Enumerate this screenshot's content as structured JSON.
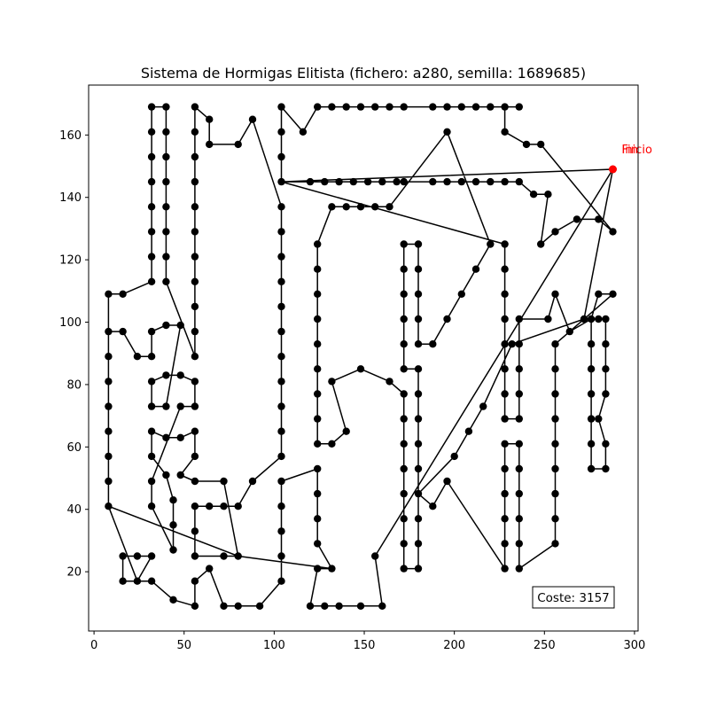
{
  "chart_data": {
    "type": "line",
    "title": "Sistema de Hormigas Elitista (fichero: a280, semilla: 1689685)",
    "xlabel": "",
    "ylabel": "",
    "xlim": [
      -3,
      302
    ],
    "ylim": [
      1,
      176
    ],
    "xticks": [
      0,
      50,
      100,
      150,
      200,
      250,
      300
    ],
    "yticks": [
      20,
      40,
      60,
      80,
      100,
      120,
      140,
      160
    ],
    "grid": false,
    "line_color": "#000000",
    "marker_color": "#000000",
    "highlight_color": "#ff0000",
    "start_label": "Inicio",
    "end_label": "Fin",
    "cost_label": "Coste: 3157",
    "tour": [
      [
        288,
        149
      ],
      [
        104,
        145
      ],
      [
        120,
        145
      ],
      [
        128,
        145
      ],
      [
        136,
        145
      ],
      [
        144,
        145
      ],
      [
        152,
        145
      ],
      [
        160,
        145
      ],
      [
        168,
        145
      ],
      [
        172,
        145
      ],
      [
        188,
        145
      ],
      [
        196,
        145
      ],
      [
        204,
        145
      ],
      [
        212,
        145
      ],
      [
        220,
        145
      ],
      [
        228,
        145
      ],
      [
        236,
        145
      ],
      [
        244,
        141
      ],
      [
        252,
        141
      ],
      [
        248,
        125
      ],
      [
        256,
        129
      ],
      [
        268,
        133
      ],
      [
        280,
        133
      ],
      [
        288,
        129
      ],
      [
        248,
        157
      ],
      [
        240,
        157
      ],
      [
        228,
        161
      ],
      [
        228,
        169
      ],
      [
        236,
        169
      ],
      [
        220,
        169
      ],
      [
        212,
        169
      ],
      [
        204,
        169
      ],
      [
        196,
        169
      ],
      [
        188,
        169
      ],
      [
        172,
        169
      ],
      [
        164,
        169
      ],
      [
        156,
        169
      ],
      [
        148,
        169
      ],
      [
        140,
        169
      ],
      [
        132,
        169
      ],
      [
        124,
        169
      ],
      [
        116,
        161
      ],
      [
        104,
        169
      ],
      [
        104,
        161
      ],
      [
        104,
        153
      ],
      [
        104,
        145
      ],
      [
        228,
        125
      ],
      [
        228,
        117
      ],
      [
        228,
        109
      ],
      [
        228,
        101
      ],
      [
        228,
        93
      ],
      [
        228,
        85
      ],
      [
        228,
        77
      ],
      [
        228,
        69
      ],
      [
        236,
        69
      ],
      [
        236,
        77
      ],
      [
        236,
        85
      ],
      [
        236,
        93
      ],
      [
        236,
        101
      ],
      [
        252,
        101
      ],
      [
        256,
        109
      ],
      [
        264,
        97
      ],
      [
        276,
        101
      ],
      [
        280,
        101
      ],
      [
        284,
        101
      ],
      [
        284,
        93
      ],
      [
        284,
        85
      ],
      [
        284,
        77
      ],
      [
        280,
        69
      ],
      [
        284,
        61
      ],
      [
        284,
        53
      ],
      [
        276,
        53
      ],
      [
        276,
        61
      ],
      [
        276,
        69
      ],
      [
        276,
        77
      ],
      [
        276,
        85
      ],
      [
        276,
        93
      ],
      [
        276,
        101
      ],
      [
        280,
        109
      ],
      [
        288,
        109
      ],
      [
        256,
        93
      ],
      [
        256,
        85
      ],
      [
        256,
        77
      ],
      [
        256,
        69
      ],
      [
        256,
        61
      ],
      [
        256,
        53
      ],
      [
        256,
        45
      ],
      [
        256,
        37
      ],
      [
        256,
        29
      ],
      [
        236,
        21
      ],
      [
        236,
        29
      ],
      [
        236,
        37
      ],
      [
        236,
        45
      ],
      [
        236,
        53
      ],
      [
        236,
        61
      ],
      [
        228,
        61
      ],
      [
        228,
        53
      ],
      [
        228,
        45
      ],
      [
        228,
        37
      ],
      [
        228,
        29
      ],
      [
        228,
        21
      ],
      [
        196,
        49
      ],
      [
        188,
        41
      ],
      [
        180,
        45
      ],
      [
        180,
        37
      ],
      [
        180,
        29
      ],
      [
        180,
        21
      ],
      [
        172,
        21
      ],
      [
        172,
        29
      ],
      [
        172,
        37
      ],
      [
        172,
        45
      ],
      [
        172,
        53
      ],
      [
        172,
        61
      ],
      [
        172,
        69
      ],
      [
        172,
        77
      ],
      [
        164,
        81
      ],
      [
        148,
        85
      ],
      [
        132,
        81
      ],
      [
        140,
        65
      ],
      [
        132,
        61
      ],
      [
        124,
        61
      ],
      [
        124,
        69
      ],
      [
        124,
        77
      ],
      [
        124,
        85
      ],
      [
        124,
        93
      ],
      [
        124,
        101
      ],
      [
        124,
        109
      ],
      [
        124,
        117
      ],
      [
        124,
        125
      ],
      [
        132,
        137
      ],
      [
        140,
        137
      ],
      [
        148,
        137
      ],
      [
        156,
        137
      ],
      [
        164,
        137
      ],
      [
        196,
        161
      ],
      [
        220,
        125
      ],
      [
        212,
        117
      ],
      [
        204,
        109
      ],
      [
        196,
        101
      ],
      [
        188,
        93
      ],
      [
        180,
        93
      ],
      [
        180,
        101
      ],
      [
        180,
        109
      ],
      [
        180,
        117
      ],
      [
        180,
        125
      ],
      [
        172,
        125
      ],
      [
        172,
        117
      ],
      [
        172,
        109
      ],
      [
        172,
        101
      ],
      [
        172,
        93
      ],
      [
        172,
        85
      ],
      [
        180,
        85
      ],
      [
        180,
        77
      ],
      [
        180,
        69
      ],
      [
        180,
        61
      ],
      [
        180,
        53
      ],
      [
        180,
        45
      ],
      [
        200,
        57
      ],
      [
        208,
        65
      ],
      [
        216,
        73
      ],
      [
        232,
        93
      ],
      [
        272,
        101
      ],
      [
        288,
        149
      ],
      [
        156,
        25
      ],
      [
        160,
        9
      ],
      [
        148,
        9
      ],
      [
        136,
        9
      ],
      [
        128,
        9
      ],
      [
        120,
        9
      ],
      [
        124,
        21
      ],
      [
        132,
        21
      ],
      [
        124,
        29
      ],
      [
        124,
        37
      ],
      [
        124,
        45
      ],
      [
        124,
        53
      ],
      [
        104,
        49
      ],
      [
        104,
        41
      ],
      [
        104,
        33
      ],
      [
        104,
        25
      ],
      [
        104,
        17
      ],
      [
        92,
        9
      ],
      [
        80,
        9
      ],
      [
        72,
        9
      ],
      [
        64,
        21
      ],
      [
        56,
        17
      ],
      [
        56,
        9
      ],
      [
        44,
        11
      ],
      [
        32,
        17
      ],
      [
        16,
        17
      ],
      [
        16,
        25
      ],
      [
        24,
        25
      ],
      [
        32,
        25
      ],
      [
        24,
        17
      ],
      [
        8,
        41
      ],
      [
        8,
        49
      ],
      [
        8,
        57
      ],
      [
        8,
        65
      ],
      [
        8,
        73
      ],
      [
        8,
        81
      ],
      [
        8,
        89
      ],
      [
        8,
        97
      ],
      [
        8,
        109
      ],
      [
        16,
        109
      ],
      [
        32,
        113
      ],
      [
        32,
        121
      ],
      [
        32,
        129
      ],
      [
        32,
        137
      ],
      [
        32,
        145
      ],
      [
        32,
        153
      ],
      [
        32,
        161
      ],
      [
        32,
        169
      ],
      [
        40,
        169
      ],
      [
        40,
        161
      ],
      [
        40,
        153
      ],
      [
        40,
        145
      ],
      [
        40,
        137
      ],
      [
        40,
        129
      ],
      [
        40,
        121
      ],
      [
        40,
        113
      ],
      [
        56,
        89
      ],
      [
        56,
        97
      ],
      [
        56,
        105
      ],
      [
        56,
        113
      ],
      [
        56,
        121
      ],
      [
        56,
        129
      ],
      [
        56,
        137
      ],
      [
        56,
        145
      ],
      [
        56,
        153
      ],
      [
        56,
        161
      ],
      [
        56,
        169
      ],
      [
        64,
        165
      ],
      [
        64,
        157
      ],
      [
        80,
        157
      ],
      [
        88,
        165
      ],
      [
        104,
        137
      ],
      [
        104,
        129
      ],
      [
        104,
        121
      ],
      [
        104,
        113
      ],
      [
        104,
        105
      ],
      [
        104,
        97
      ],
      [
        104,
        89
      ],
      [
        104,
        81
      ],
      [
        104,
        73
      ],
      [
        104,
        65
      ],
      [
        104,
        57
      ],
      [
        88,
        49
      ],
      [
        80,
        41
      ],
      [
        72,
        41
      ],
      [
        64,
        41
      ],
      [
        56,
        41
      ],
      [
        56,
        33
      ],
      [
        56,
        25
      ],
      [
        72,
        25
      ],
      [
        80,
        25
      ],
      [
        72,
        49
      ],
      [
        56,
        49
      ],
      [
        48,
        51
      ],
      [
        56,
        57
      ],
      [
        56,
        65
      ],
      [
        48,
        63
      ],
      [
        40,
        63
      ],
      [
        32,
        65
      ],
      [
        32,
        57
      ],
      [
        40,
        51
      ],
      [
        44,
        43
      ],
      [
        44,
        35
      ],
      [
        44,
        27
      ],
      [
        32,
        41
      ],
      [
        32,
        49
      ],
      [
        48,
        73
      ],
      [
        56,
        73
      ],
      [
        56,
        81
      ],
      [
        48,
        83
      ],
      [
        40,
        83
      ],
      [
        32,
        81
      ],
      [
        32,
        73
      ],
      [
        40,
        73
      ],
      [
        48,
        99
      ],
      [
        40,
        99
      ],
      [
        32,
        97
      ],
      [
        32,
        89
      ],
      [
        24,
        89
      ],
      [
        16,
        97
      ],
      [
        8,
        97
      ],
      [
        8,
        41
      ],
      [
        80,
        25
      ],
      [
        132,
        21
      ]
    ],
    "extra_points": [
      [
        8,
        109
      ],
      [
        8,
        97
      ],
      [
        272,
        101
      ]
    ]
  }
}
